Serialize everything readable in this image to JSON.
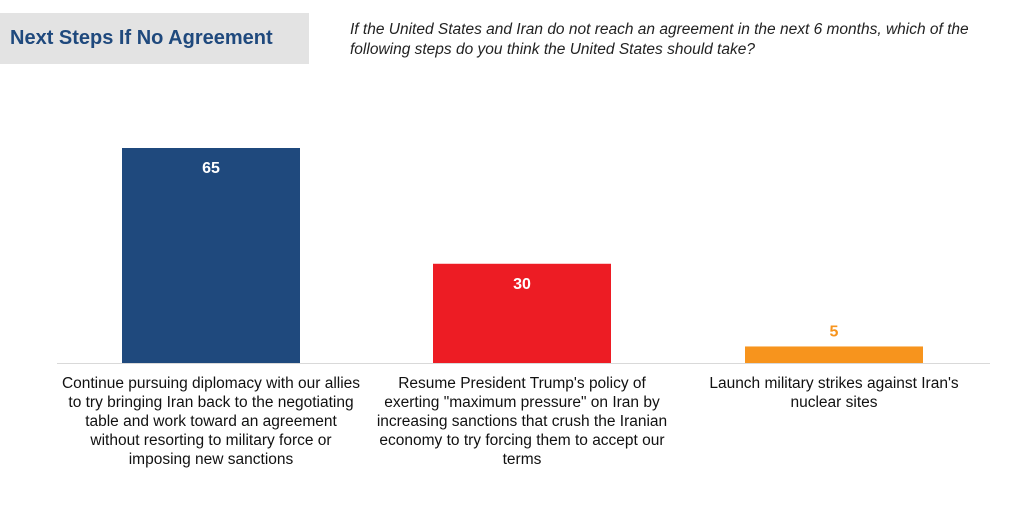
{
  "header": {
    "title": "Next Steps If No Agreement",
    "question": "If the United States and Iran do not reach an agreement in the next 6 months, which of the following steps do you think the United States should take?"
  },
  "chart_data": {
    "type": "bar",
    "categories": [
      "Continue pursuing diplomacy with our allies to try bringing Iran back to the negotiating table and work toward an agreement without resorting to military force or imposing new sanctions",
      "Resume President Trump's policy of exerting \"maximum pressure\" on Iran by increasing sanctions that crush the Iranian economy to try forcing them to accept our terms",
      "Launch military strikes against Iran's nuclear sites"
    ],
    "values": [
      65,
      30,
      5
    ],
    "data_labels": [
      "65",
      "30",
      "5"
    ],
    "colors": [
      "#1f497d",
      "#ed1c24",
      "#f7941d"
    ],
    "label_colors": [
      "#ffffff",
      "#ffffff",
      "#f7941d"
    ],
    "ylim": [
      0,
      70
    ],
    "grid": false,
    "legend": "none"
  }
}
